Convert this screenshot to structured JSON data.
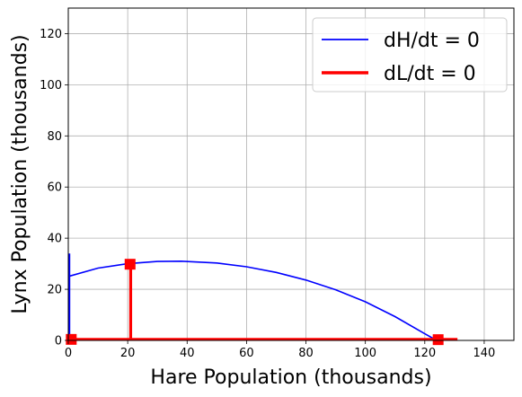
{
  "chart_data": {
    "type": "line",
    "xlabel": "Hare Population (thousands)",
    "ylabel": "Lynx Population (thousands)",
    "xlim": [
      0,
      150
    ],
    "ylim": [
      0,
      130
    ],
    "xticks": [
      0,
      20,
      40,
      60,
      80,
      100,
      120,
      140
    ],
    "yticks": [
      0,
      20,
      40,
      60,
      80,
      100,
      120
    ],
    "grid": true,
    "legend_position": "top-right",
    "colors": {
      "dH": "#0000ff",
      "dL": "#ff0000"
    },
    "series": [
      {
        "name": "dH/dt = 0",
        "color": "#0000ff",
        "points": [
          [
            0,
            25
          ],
          [
            10,
            28.3
          ],
          [
            20,
            30
          ],
          [
            30,
            30.9
          ],
          [
            38,
            31
          ],
          [
            50,
            30.3
          ],
          [
            60,
            28.8
          ],
          [
            70,
            26.6
          ],
          [
            80,
            23.6
          ],
          [
            90,
            19.8
          ],
          [
            100,
            15.1
          ],
          [
            110,
            9.3
          ],
          [
            120,
            2.6
          ],
          [
            124,
            0
          ]
        ],
        "vertical_line": {
          "x": 0.4,
          "y_from": 0,
          "y_to": 34
        }
      },
      {
        "name": "dL/dt = 0",
        "color": "#ff0000",
        "segments": [
          [
            [
              0,
              0.4
            ],
            [
              131,
              0.4
            ]
          ],
          [
            [
              21,
              0
            ],
            [
              21,
              31
            ]
          ]
        ],
        "markers": [
          [
            20.8,
            29.8
          ],
          [
            1,
            0.4
          ],
          [
            124.5,
            0.3
          ]
        ]
      }
    ]
  }
}
